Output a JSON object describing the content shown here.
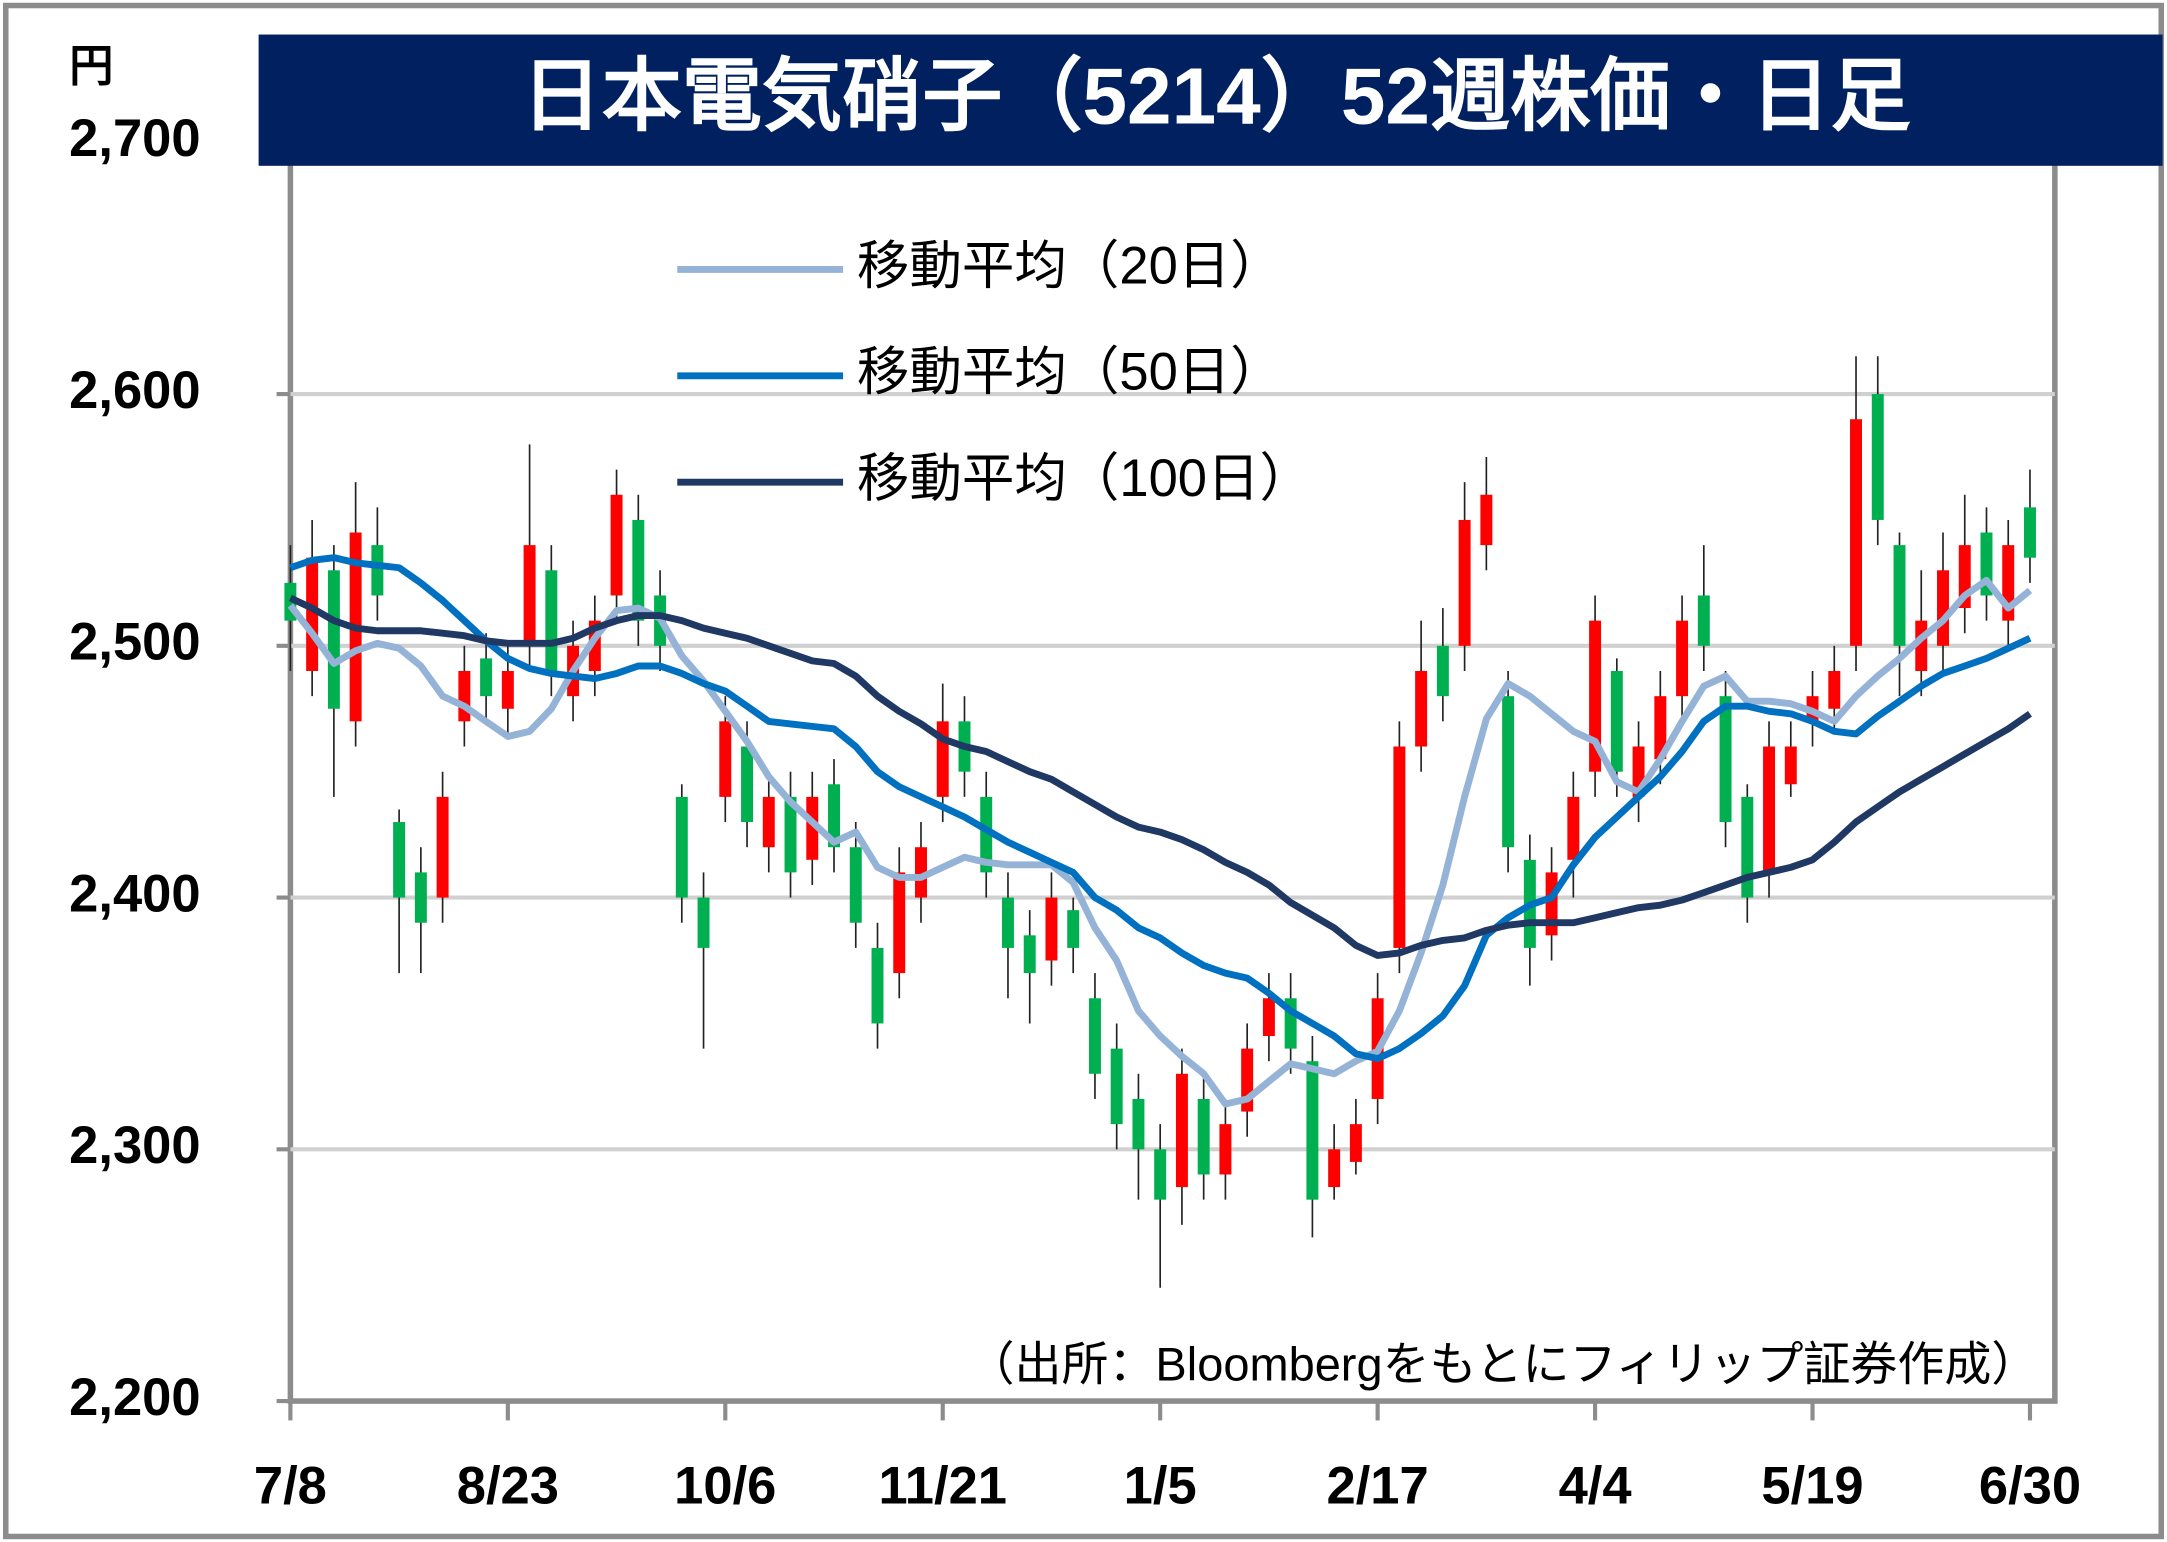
{
  "chart_data": {
    "type": "candlestick",
    "title": "日本電気硝子（5214）52週株価・日足",
    "y_unit": "円",
    "source": "（出所：Bloombergをもとにフィリップ証券作成）",
    "categories": [
      "7/8",
      null,
      null,
      null,
      null,
      null,
      null,
      null,
      null,
      null,
      "8/23",
      null,
      null,
      null,
      null,
      null,
      null,
      null,
      null,
      null,
      "10/6",
      null,
      null,
      null,
      null,
      null,
      null,
      null,
      null,
      null,
      "11/21",
      null,
      null,
      null,
      null,
      null,
      null,
      null,
      null,
      null,
      "1/5",
      null,
      null,
      null,
      null,
      null,
      null,
      null,
      null,
      null,
      "2/17",
      null,
      null,
      null,
      null,
      null,
      null,
      null,
      null,
      null,
      "4/4",
      null,
      null,
      null,
      null,
      null,
      null,
      null,
      null,
      null,
      "5/19",
      null,
      null,
      null,
      null,
      null,
      null,
      null,
      null,
      null,
      "6/30"
    ],
    "open": [
      2525,
      2490,
      2530,
      2470,
      2540,
      2430,
      2410,
      2400,
      2470,
      2495,
      2475,
      2500,
      2530,
      2480,
      2490,
      2520,
      2550,
      2520,
      2440,
      2400,
      2440,
      2460,
      2420,
      2440,
      2415,
      2445,
      2420,
      2380,
      2370,
      2400,
      2440,
      2470,
      2440,
      2400,
      2385,
      2375,
      2395,
      2360,
      2340,
      2320,
      2300,
      2285,
      2320,
      2290,
      2315,
      2345,
      2360,
      2335,
      2285,
      2295,
      2320,
      2380,
      2460,
      2500,
      2500,
      2540,
      2480,
      2415,
      2385,
      2415,
      2450,
      2490,
      2440,
      2455,
      2480,
      2520,
      2480,
      2440,
      2410,
      2445,
      2470,
      2475,
      2500,
      2600,
      2540,
      2490,
      2500,
      2515,
      2545,
      2510,
      2555
    ],
    "high": [
      2540,
      2550,
      2540,
      2565,
      2555,
      2435,
      2420,
      2450,
      2500,
      2505,
      2500,
      2580,
      2540,
      2510,
      2520,
      2570,
      2560,
      2530,
      2445,
      2410,
      2480,
      2470,
      2450,
      2450,
      2450,
      2455,
      2430,
      2390,
      2420,
      2430,
      2485,
      2480,
      2450,
      2410,
      2395,
      2410,
      2400,
      2370,
      2350,
      2330,
      2310,
      2340,
      2330,
      2320,
      2350,
      2370,
      2370,
      2345,
      2310,
      2320,
      2370,
      2470,
      2510,
      2515,
      2565,
      2575,
      2490,
      2425,
      2420,
      2450,
      2520,
      2495,
      2470,
      2490,
      2520,
      2540,
      2490,
      2445,
      2470,
      2470,
      2490,
      2500,
      2615,
      2615,
      2545,
      2530,
      2545,
      2560,
      2555,
      2550,
      2570
    ],
    "low": [
      2490,
      2480,
      2440,
      2460,
      2510,
      2370,
      2370,
      2390,
      2460,
      2470,
      2465,
      2490,
      2480,
      2470,
      2480,
      2510,
      2500,
      2490,
      2390,
      2340,
      2430,
      2420,
      2410,
      2400,
      2405,
      2410,
      2380,
      2340,
      2360,
      2390,
      2430,
      2440,
      2400,
      2360,
      2350,
      2365,
      2370,
      2320,
      2300,
      2280,
      2245,
      2270,
      2280,
      2280,
      2305,
      2335,
      2330,
      2265,
      2280,
      2290,
      2310,
      2370,
      2450,
      2470,
      2490,
      2530,
      2410,
      2365,
      2375,
      2400,
      2440,
      2440,
      2430,
      2445,
      2470,
      2490,
      2420,
      2390,
      2400,
      2440,
      2460,
      2465,
      2490,
      2540,
      2480,
      2480,
      2490,
      2505,
      2510,
      2500,
      2525
    ],
    "close": [
      2510,
      2535,
      2475,
      2545,
      2520,
      2400,
      2390,
      2440,
      2490,
      2480,
      2490,
      2540,
      2490,
      2500,
      2510,
      2560,
      2510,
      2500,
      2400,
      2380,
      2470,
      2430,
      2440,
      2410,
      2440,
      2420,
      2390,
      2350,
      2410,
      2420,
      2470,
      2450,
      2410,
      2380,
      2370,
      2400,
      2380,
      2330,
      2310,
      2300,
      2280,
      2330,
      2290,
      2310,
      2340,
      2360,
      2340,
      2280,
      2300,
      2310,
      2360,
      2460,
      2490,
      2480,
      2550,
      2560,
      2420,
      2380,
      2410,
      2440,
      2510,
      2450,
      2460,
      2480,
      2510,
      2500,
      2430,
      2400,
      2460,
      2460,
      2480,
      2490,
      2590,
      2550,
      2500,
      2510,
      2530,
      2540,
      2520,
      2540,
      2535
    ],
    "up_color": "#ff0000",
    "down_color": "#00b050",
    "series": [
      {
        "name": "移動平均（20日）",
        "color": "#95b3d7",
        "values": [
          2516,
          2505,
          2493,
          2498,
          2501,
          2499,
          2492,
          2480,
          2476,
          2470,
          2464,
          2466,
          2475,
          2490,
          2503,
          2514,
          2515,
          2511,
          2496,
          2486,
          2474,
          2462,
          2448,
          2438,
          2430,
          2422,
          2426,
          2412,
          2408,
          2408,
          2412,
          2416,
          2414,
          2413,
          2413,
          2413,
          2406,
          2388,
          2375,
          2355,
          2345,
          2337,
          2330,
          2318,
          2320,
          2327,
          2334,
          2332,
          2330,
          2335,
          2339,
          2355,
          2378,
          2405,
          2440,
          2471,
          2485,
          2480,
          2473,
          2466,
          2462,
          2446,
          2442,
          2455,
          2470,
          2484,
          2488,
          2478,
          2478,
          2477,
          2474,
          2470,
          2480,
          2488,
          2495,
          2503,
          2510,
          2520,
          2526,
          2515,
          2522
        ]
      },
      {
        "name": "移動平均（50日）",
        "color": "#0070c0",
        "values": [
          2531,
          2534,
          2535,
          2533,
          2532,
          2531,
          2525,
          2518,
          2510,
          2502,
          2495,
          2491,
          2489,
          2488,
          2487,
          2489,
          2492,
          2492,
          2489,
          2485,
          2482,
          2476,
          2470,
          2469,
          2468,
          2467,
          2460,
          2450,
          2444,
          2440,
          2436,
          2432,
          2427,
          2422,
          2418,
          2414,
          2410,
          2400,
          2395,
          2388,
          2384,
          2378,
          2373,
          2370,
          2368,
          2362,
          2355,
          2350,
          2345,
          2338,
          2336,
          2340,
          2346,
          2353,
          2365,
          2385,
          2392,
          2397,
          2400,
          2413,
          2424,
          2432,
          2440,
          2448,
          2458,
          2470,
          2476,
          2476,
          2474,
          2473,
          2470,
          2466,
          2465,
          2472,
          2478,
          2484,
          2489,
          2492,
          2495,
          2499,
          2503
        ]
      },
      {
        "name": "移動平均（100日）",
        "color": "#1f3864",
        "values": [
          2519,
          2515,
          2510,
          2507,
          2506,
          2506,
          2506,
          2505,
          2504,
          2502,
          2501,
          2501,
          2501,
          2503,
          2507,
          2510,
          2512,
          2512,
          2510,
          2507,
          2505,
          2503,
          2500,
          2497,
          2494,
          2493,
          2488,
          2480,
          2474,
          2469,
          2463,
          2460,
          2458,
          2454,
          2450,
          2447,
          2442,
          2437,
          2432,
          2428,
          2426,
          2423,
          2419,
          2414,
          2410,
          2405,
          2398,
          2393,
          2388,
          2381,
          2377,
          2378,
          2381,
          2383,
          2384,
          2387,
          2389,
          2390,
          2390,
          2390,
          2392,
          2394,
          2396,
          2397,
          2399,
          2402,
          2405,
          2408,
          2410,
          2412,
          2415,
          2422,
          2430,
          2436,
          2442,
          2447,
          2452,
          2457,
          2462,
          2467,
          2473
        ]
      }
    ],
    "ylim": [
      2200,
      2700
    ],
    "yticks": [
      {
        "value": 2200,
        "label": "2,200"
      },
      {
        "value": 2300,
        "label": "2,300"
      },
      {
        "value": 2400,
        "label": "2,400"
      },
      {
        "value": 2500,
        "label": "2,500"
      },
      {
        "value": 2600,
        "label": "2,600"
      },
      {
        "value": 2700,
        "label": "2,700"
      }
    ],
    "grid": true
  }
}
